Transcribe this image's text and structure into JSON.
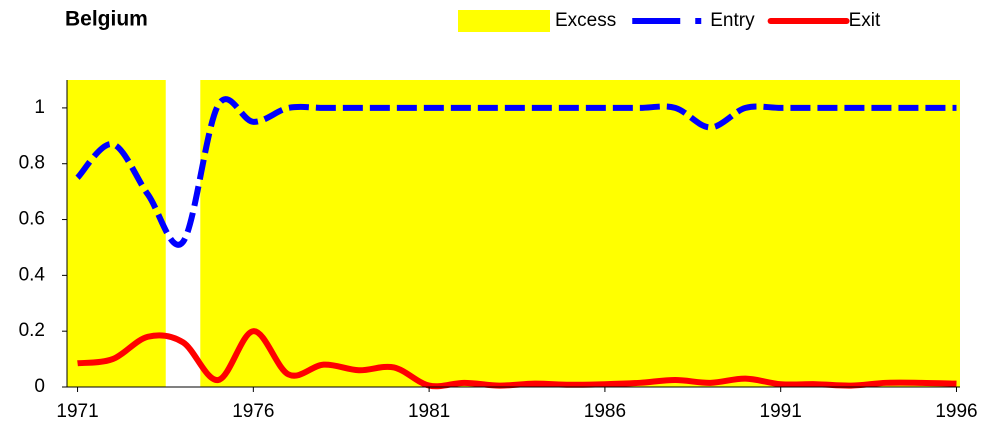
{
  "chart_data": {
    "type": "line",
    "title": "Belgium",
    "x": [
      1971,
      1972,
      1973,
      1974,
      1975,
      1976,
      1977,
      1978,
      1979,
      1980,
      1981,
      1982,
      1983,
      1984,
      1985,
      1986,
      1987,
      1988,
      1989,
      1990,
      1991,
      1992,
      1993,
      1994,
      1995,
      1996
    ],
    "series": [
      {
        "name": "Excess",
        "type": "bar",
        "color": "#ffff00",
        "values": [
          1.1,
          1.1,
          1.1,
          0,
          1.1,
          1.1,
          1.1,
          1.1,
          1.1,
          1.1,
          1.1,
          1.1,
          1.1,
          1.1,
          1.1,
          1.1,
          1.1,
          1.1,
          1.1,
          1.1,
          1.1,
          1.1,
          1.1,
          1.1,
          1.1,
          1.1
        ]
      },
      {
        "name": "Entry",
        "type": "line",
        "dash": true,
        "color": "#0000ff",
        "values": [
          0.75,
          0.87,
          0.69,
          0.52,
          1.01,
          0.95,
          1.0,
          1.0,
          1.0,
          1.0,
          1.0,
          1.0,
          1.0,
          1.0,
          1.0,
          1.0,
          1.0,
          1.0,
          0.93,
          1.0,
          1.0,
          1.0,
          1.0,
          1.0,
          1.0,
          1.0
        ]
      },
      {
        "name": "Exit",
        "type": "line",
        "dash": false,
        "color": "#ff0000",
        "values": [
          0.085,
          0.1,
          0.18,
          0.16,
          0.025,
          0.2,
          0.045,
          0.08,
          0.06,
          0.07,
          0.005,
          0.015,
          0.005,
          0.012,
          0.008,
          0.01,
          0.015,
          0.025,
          0.015,
          0.03,
          0.01,
          0.01,
          0.005,
          0.015,
          0.015,
          0.012
        ]
      }
    ],
    "xlim": [
      1970.7,
      1996.1
    ],
    "xticks": [
      1971,
      1976,
      1981,
      1986,
      1991,
      1996
    ],
    "ylim": [
      0,
      1.1
    ],
    "yticks": [
      0,
      0.2,
      0.4,
      0.6,
      0.8,
      1
    ],
    "legend": "top-right"
  }
}
